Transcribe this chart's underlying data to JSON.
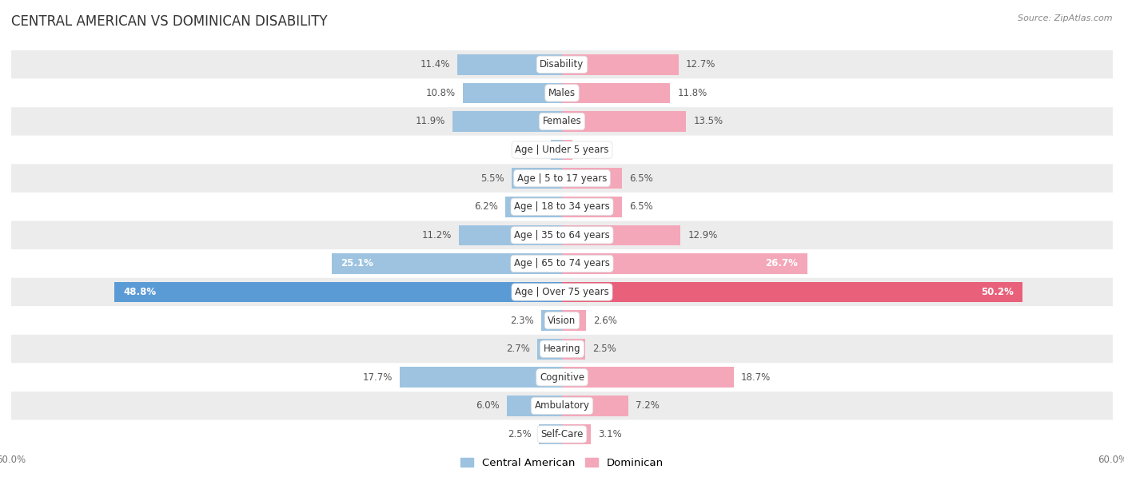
{
  "title": "CENTRAL AMERICAN VS DOMINICAN DISABILITY",
  "source": "Source: ZipAtlas.com",
  "categories": [
    "Disability",
    "Males",
    "Females",
    "Age | Under 5 years",
    "Age | 5 to 17 years",
    "Age | 18 to 34 years",
    "Age | 35 to 64 years",
    "Age | 65 to 74 years",
    "Age | Over 75 years",
    "Vision",
    "Hearing",
    "Cognitive",
    "Ambulatory",
    "Self-Care"
  ],
  "central_american": [
    11.4,
    10.8,
    11.9,
    1.2,
    5.5,
    6.2,
    11.2,
    25.1,
    48.8,
    2.3,
    2.7,
    17.7,
    6.0,
    2.5
  ],
  "dominican": [
    12.7,
    11.8,
    13.5,
    1.1,
    6.5,
    6.5,
    12.9,
    26.7,
    50.2,
    2.6,
    2.5,
    18.7,
    7.2,
    3.1
  ],
  "color_central": "#9dc3e0",
  "color_dominican": "#f4a7b9",
  "color_central_dark": "#5b9bd5",
  "color_dominican_dark": "#e8607a",
  "max_val": 60.0,
  "background_row_light": "#ececec",
  "background_row_white": "#ffffff",
  "label_fontsize": 8.5,
  "title_fontsize": 12,
  "legend_fontsize": 9.5
}
